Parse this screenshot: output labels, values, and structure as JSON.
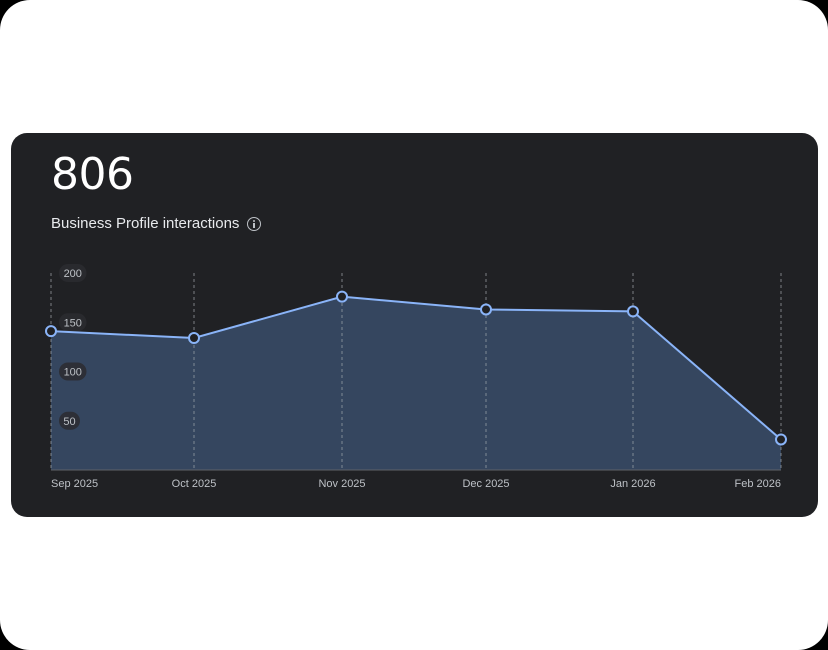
{
  "card": {
    "total_value": "806",
    "total_label": "Business Profile interactions",
    "info_icon": "info-icon"
  },
  "colors": {
    "card_background": "#202124",
    "line": "#8ab4f8",
    "area_fill": "#35465f",
    "gridline": "#9aa0a6",
    "text": "#e8eaed"
  },
  "chart_data": {
    "type": "area",
    "categories": [
      "Sep 2025",
      "Oct 2025",
      "Nov 2025",
      "Dec 2025",
      "Jan 2026",
      "Feb 2026"
    ],
    "series": [
      {
        "values": [
          141,
          134,
          176,
          163,
          161,
          31
        ]
      }
    ],
    "y_ticks": [
      "200",
      "150",
      "100",
      "50"
    ],
    "ylim": [
      0,
      200
    ],
    "vertical_grid": true,
    "legend": "none"
  }
}
